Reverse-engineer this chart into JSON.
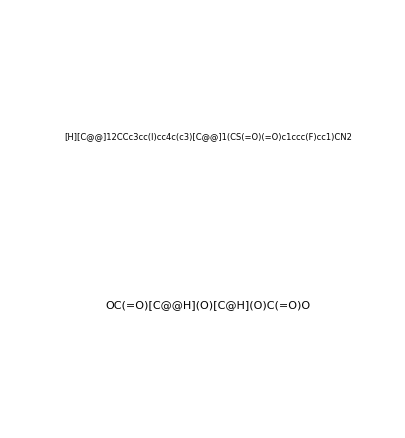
{
  "smiles_top": "[H][C@@]12CCc3cc(I)cc4c(c3)[C@@]1(CS(=O)(=O)c1ccc(F)cc1)CN2",
  "smiles_bottom": "OC(=O)[C@@H](O)[C@H](O)C(=O)O",
  "bg_color": "#ffffff",
  "line_color": "#000000",
  "fig_width": 4.06,
  "fig_height": 4.38,
  "dpi": 100
}
